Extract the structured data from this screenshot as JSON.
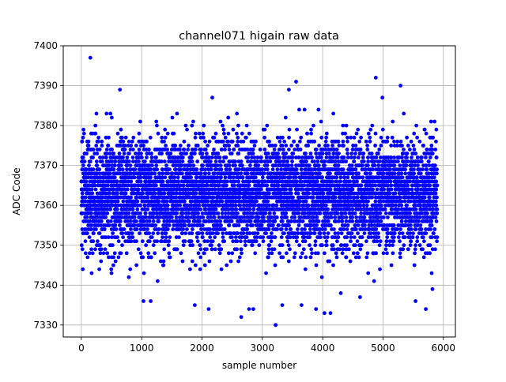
{
  "chart_data": {
    "type": "scatter",
    "title": "channel071 higain raw data",
    "xlabel": "sample number",
    "ylabel": "ADC Code",
    "xlim": [
      -300,
      6200
    ],
    "ylim": [
      7327,
      7400
    ],
    "xticks": [
      0,
      1000,
      2000,
      3000,
      4000,
      5000,
      6000
    ],
    "yticks": [
      7330,
      7340,
      7350,
      7360,
      7370,
      7380,
      7390,
      7400
    ],
    "grid": true,
    "legend": "none",
    "marker_color": "#0000ff",
    "sample_count": 5900,
    "value_range": [
      7330,
      7397
    ],
    "typical_band": [
      7346,
      7378
    ],
    "center_value": 7363,
    "series": [
      {
        "x": [
          150,
          640,
          3220,
          3560,
          4880,
          5290,
          2170,
          3440,
          4990,
          3610,
          3700,
          3930,
          2650,
          3220,
          4030,
          4130,
          2850,
          3330,
          3890,
          4620,
          1030,
          500,
          1150,
          1880,
          2110,
          2780,
          3650,
          4300,
          5540,
          5710,
          5820
        ],
        "y": [
          7397,
          7389,
          7330,
          7391,
          7392,
          7390,
          7387,
          7389,
          7387,
          7384,
          7384,
          7384,
          7332,
          7330,
          7333,
          7333,
          7334,
          7335,
          7334,
          7337,
          7336,
          7343,
          7336,
          7335,
          7334,
          7334,
          7335,
          7338,
          7336,
          7334,
          7339
        ]
      }
    ]
  }
}
